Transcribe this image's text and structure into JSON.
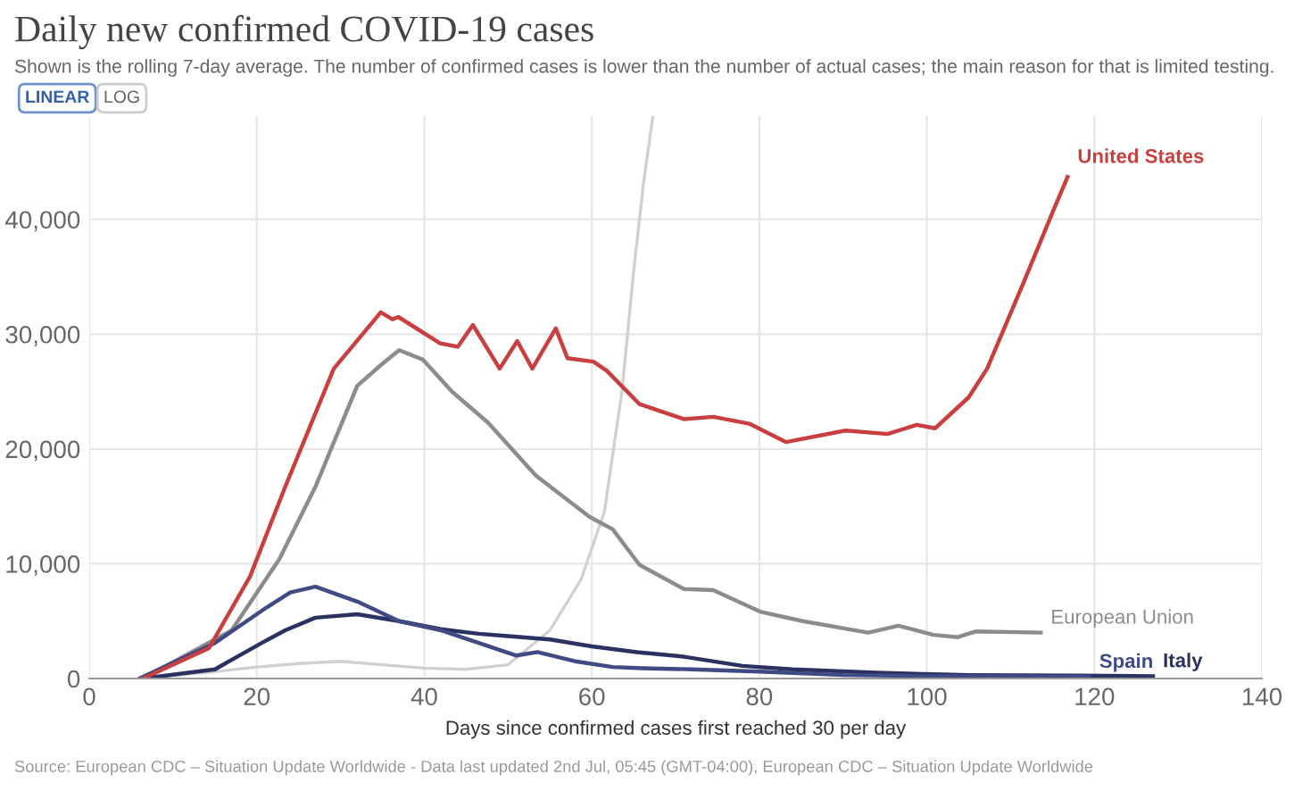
{
  "chart_data": {
    "type": "line",
    "title": "Daily new confirmed COVID-19 cases",
    "subtitle": "Shown is the rolling 7-day average. The number of confirmed cases is lower than the number of actual cases; the main reason for that is limited testing.",
    "xlabel": "Days since confirmed cases first reached 30 per day",
    "annotations": [
      "LINEAR",
      "LOG",
      "Source: European CDC – Situation Update Worldwide - Data last updated 2nd Jul, 05:45 (GMT-04:00), European CDC – Situation Update Worldwide"
    ],
    "xlim": [
      0,
      140
    ],
    "ylim": [
      0,
      49000
    ],
    "xticks": [
      0,
      20,
      40,
      60,
      80,
      100,
      120,
      140
    ],
    "yticks": [
      {
        "value": 0,
        "label": "0"
      },
      {
        "value": 10000,
        "label": "10,000"
      },
      {
        "value": 20000,
        "label": "20,000"
      },
      {
        "value": 30000,
        "label": "30,000"
      },
      {
        "value": 40000,
        "label": "40,000"
      }
    ],
    "grid": true,
    "legend": false,
    "marker": "none",
    "line_style": "solid",
    "series": [
      {
        "color": "#d0d0d0",
        "x": [
          6,
          15,
          20,
          25,
          30,
          35,
          40,
          45,
          50,
          55,
          58.7,
          61.5,
          63.6,
          65,
          66.2,
          67.3
        ],
        "values": [
          0,
          600,
          1000,
          1300,
          1500,
          1200,
          900,
          800,
          1200,
          4200,
          8600,
          14500,
          25000,
          35500,
          43300,
          49000
        ]
      },
      {
        "name": "European Union",
        "color": "#8c8c8c",
        "x": [
          6.4,
          17,
          22.7,
          27,
          32,
          34.8,
          37,
          39.8,
          43.3,
          47.6,
          53.3,
          59.7,
          62.5,
          65.7,
          71,
          74.5,
          80.2,
          85.2,
          93,
          96.6,
          100.8,
          103.7,
          105.8,
          113.6
        ],
        "values": [
          0,
          4200,
          10400,
          16700,
          25500,
          27300,
          28600,
          27800,
          25000,
          22300,
          17700,
          14100,
          13000,
          9900,
          7800,
          7700,
          5800,
          5000,
          4000,
          4600,
          3800,
          3600,
          4100,
          4000
        ]
      },
      {
        "name": "Italy",
        "color": "#2b3160",
        "x": [
          6.4,
          15,
          20.6,
          23.4,
          27,
          32,
          37,
          42,
          46.5,
          50,
          55,
          60,
          65.4,
          71,
          78,
          84,
          94,
          105,
          117.8,
          127
        ],
        "values": [
          0,
          800,
          3100,
          4200,
          5300,
          5600,
          5000,
          4300,
          3900,
          3700,
          3400,
          2800,
          2300,
          1900,
          1100,
          800,
          500,
          300,
          250,
          200
        ]
      },
      {
        "name": "Spain",
        "color": "#404a85",
        "x": [
          6,
          15,
          21.2,
          24,
          27,
          32,
          37,
          42,
          46.5,
          51,
          53.5,
          58,
          62.5,
          66,
          72,
          80,
          90,
          100,
          110,
          119.4
        ],
        "values": [
          0,
          3100,
          6200,
          7500,
          8000,
          6700,
          5000,
          4200,
          3100,
          2000,
          2300,
          1500,
          1000,
          900,
          800,
          600,
          300,
          200,
          200,
          150
        ]
      },
      {
        "name": "United States",
        "color": "#c93f3f",
        "x": [
          6.4,
          14.3,
          19.2,
          23.4,
          29.2,
          34.8,
          36.2,
          36.9,
          41.9,
          44,
          45.8,
          49,
          51.1,
          52.9,
          55.7,
          57.1,
          60.2,
          61.8,
          65.7,
          71,
          74.5,
          78.8,
          83.2,
          90.3,
          95.3,
          98.8,
          101,
          105,
          107.2,
          111.5,
          115,
          116.8
        ],
        "values": [
          0,
          2650,
          8900,
          16700,
          27000,
          31900,
          31300,
          31500,
          29200,
          28900,
          30800,
          27000,
          29400,
          27000,
          30500,
          27900,
          27600,
          26800,
          23900,
          22600,
          22800,
          22200,
          20600,
          21600,
          21300,
          22100,
          21800,
          24500,
          27000,
          34400,
          40600,
          43700
        ]
      }
    ]
  }
}
